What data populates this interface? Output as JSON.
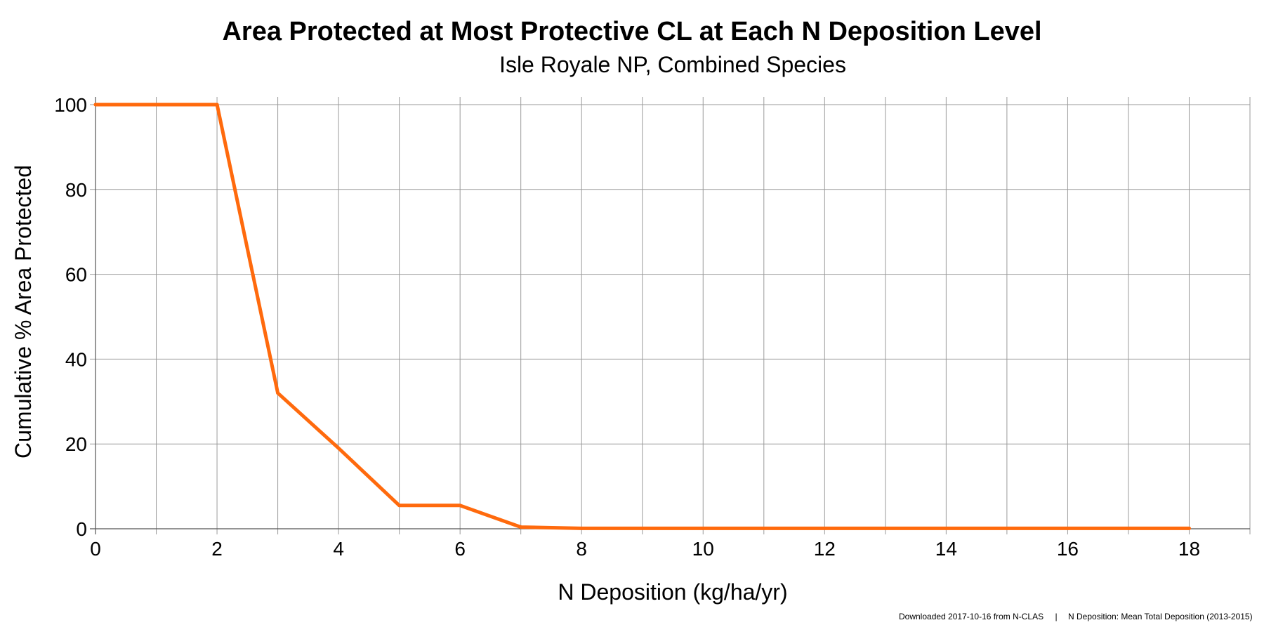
{
  "chart_data": {
    "type": "line",
    "title": "Area Protected at Most Protective CL at Each N Deposition Level",
    "subtitle": "Isle Royale NP, Combined Species",
    "xlabel": "N Deposition (kg/ha/yr)",
    "ylabel": "Cumulative % Area Protected",
    "xlim": [
      0,
      19
    ],
    "ylim": [
      0,
      100
    ],
    "x_ticks": [
      0,
      2,
      4,
      6,
      8,
      10,
      12,
      14,
      16,
      18
    ],
    "x_tick_labels": [
      "0",
      "2",
      "4",
      "6",
      "8",
      "10",
      "12",
      "14",
      "16",
      "18"
    ],
    "y_ticks": [
      0,
      20,
      40,
      60,
      80,
      100
    ],
    "y_tick_labels": [
      "0",
      "20",
      "40",
      "60",
      "80",
      "100"
    ],
    "x_grid_step": 1,
    "grid": true,
    "series": [
      {
        "color": "#ff6a0d",
        "x": [
          0,
          1,
          2,
          3,
          4,
          5,
          6,
          7,
          8,
          9,
          10,
          11,
          12,
          13,
          14,
          15,
          16,
          17,
          18
        ],
        "y": [
          100,
          100,
          100,
          32,
          19,
          5.5,
          5.5,
          0.4,
          0.1,
          0.1,
          0.1,
          0.1,
          0.1,
          0.1,
          0.1,
          0.1,
          0.1,
          0.1,
          0.1
        ]
      }
    ]
  },
  "footer": {
    "source": "Downloaded 2017-10-16 from N-CLAS",
    "separator": "|",
    "note": "N Deposition: Mean Total Deposition (2013-2015)"
  }
}
